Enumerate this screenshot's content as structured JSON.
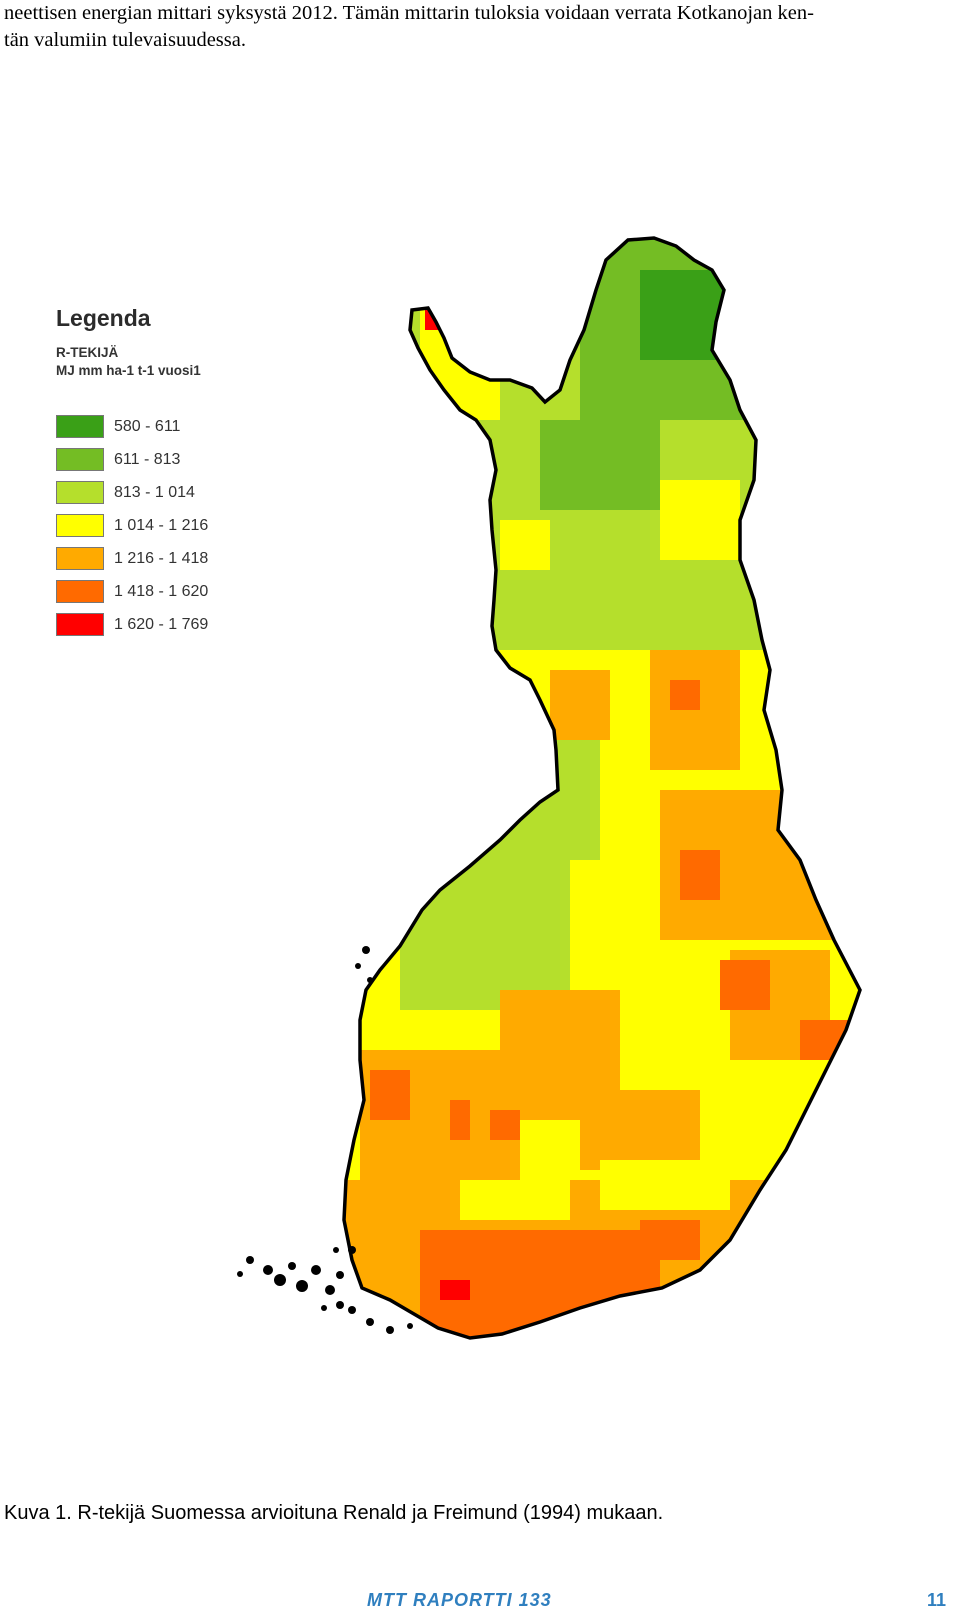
{
  "intro": {
    "line1": "neettisen energian mittari syksystä 2012. Tämän mittarin tuloksia voidaan verrata Kotkanojan ken-",
    "line2": "tän valumiin tulevaisuudessa."
  },
  "legend": {
    "title": "Legenda",
    "layer": "R-TEKIJÄ",
    "unit": "MJ mm ha-1 t-1 vuosi1",
    "classes": [
      {
        "label": "580 - 611",
        "color": "#3aa017"
      },
      {
        "label": "611 - 813",
        "color": "#74bd24"
      },
      {
        "label": "813 - 1 014",
        "color": "#b5df2c"
      },
      {
        "label": "1 014 - 1 216",
        "color": "#ffff00"
      },
      {
        "label": "1 216 - 1 418",
        "color": "#ffaa00"
      },
      {
        "label": "1 418 - 1 620",
        "color": "#ff6a00"
      },
      {
        "label": "1 620 - 1 769",
        "color": "#ff0000"
      }
    ]
  },
  "caption": "Kuva 1. R-tekijä Suomessa arvioituna Renald ja Freimund (1994) mukaan.",
  "footer": {
    "series": "MTT RAPORTTI 133",
    "page": "11"
  }
}
